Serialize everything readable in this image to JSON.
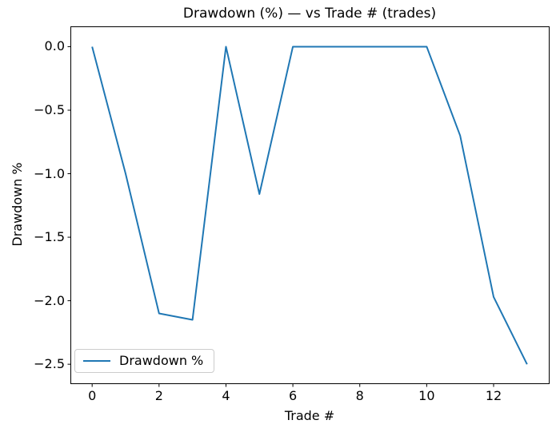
{
  "chart_data": {
    "type": "line",
    "title": "Drawdown (%) — vs Trade # (trades)",
    "xlabel": "Trade #",
    "ylabel": "Drawdown %",
    "x": [
      0,
      1,
      2,
      3,
      4,
      5,
      6,
      7,
      8,
      9,
      10,
      11,
      12,
      13
    ],
    "series": [
      {
        "name": "Drawdown %",
        "color": "#1f77b4",
        "values": [
          0.0,
          -1.0,
          -2.1,
          -2.15,
          0.0,
          -1.16,
          0.0,
          0.0,
          0.0,
          0.0,
          0.0,
          -0.7,
          -1.97,
          -2.5
        ]
      }
    ],
    "xticks": [
      0,
      2,
      4,
      6,
      8,
      10,
      12
    ],
    "yticks": [
      0.0,
      -0.5,
      -1.0,
      -1.5,
      -2.0,
      -2.5
    ],
    "ytick_labels": [
      "0.0",
      "−0.5",
      "−1.0",
      "−1.5",
      "−2.0",
      "−2.5"
    ],
    "xlim": [
      -0.65,
      13.65
    ],
    "ylim": [
      -2.65,
      0.16
    ],
    "grid": false,
    "legend_position": "lower left",
    "line_width": 2,
    "axes_edge_color": "#000000",
    "background_color": "#ffffff"
  }
}
